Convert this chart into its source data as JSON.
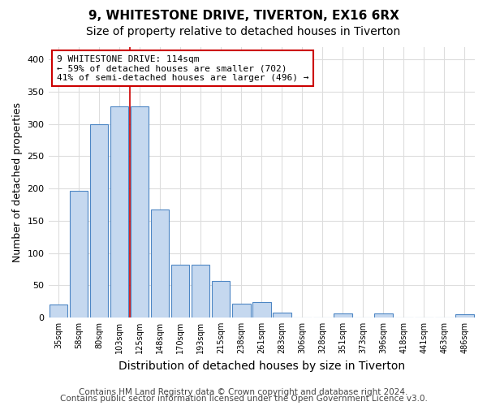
{
  "title1": "9, WHITESTONE DRIVE, TIVERTON, EX16 6RX",
  "title2": "Size of property relative to detached houses in Tiverton",
  "xlabel": "Distribution of detached houses by size in Tiverton",
  "ylabel": "Number of detached properties",
  "bin_labels": [
    "35sqm",
    "58sqm",
    "80sqm",
    "103sqm",
    "125sqm",
    "148sqm",
    "170sqm",
    "193sqm",
    "215sqm",
    "238sqm",
    "261sqm",
    "283sqm",
    "306sqm",
    "328sqm",
    "351sqm",
    "373sqm",
    "396sqm",
    "418sqm",
    "441sqm",
    "463sqm",
    "486sqm"
  ],
  "bar_heights": [
    20,
    197,
    300,
    328,
    328,
    168,
    82,
    82,
    57,
    21,
    24,
    8,
    0,
    0,
    6,
    0,
    6,
    0,
    0,
    0,
    5
  ],
  "bar_color": "#c5d8ef",
  "bar_edge_color": "#4d86c4",
  "red_line_x": 3,
  "annotation_text": "9 WHITESTONE DRIVE: 114sqm\n← 59% of detached houses are smaller (702)\n41% of semi-detached houses are larger (496) →",
  "annotation_box_color": "#ffffff",
  "annotation_box_edge": "#cc0000",
  "ylim": [
    0,
    420
  ],
  "yticks": [
    0,
    50,
    100,
    150,
    200,
    250,
    300,
    350,
    400
  ],
  "footer1": "Contains HM Land Registry data © Crown copyright and database right 2024.",
  "footer2": "Contains public sector information licensed under the Open Government Licence v3.0.",
  "background_color": "#ffffff",
  "grid_color": "#dddddd",
  "title1_fontsize": 11,
  "title2_fontsize": 10,
  "xlabel_fontsize": 10,
  "ylabel_fontsize": 9,
  "footer_fontsize": 7.5
}
